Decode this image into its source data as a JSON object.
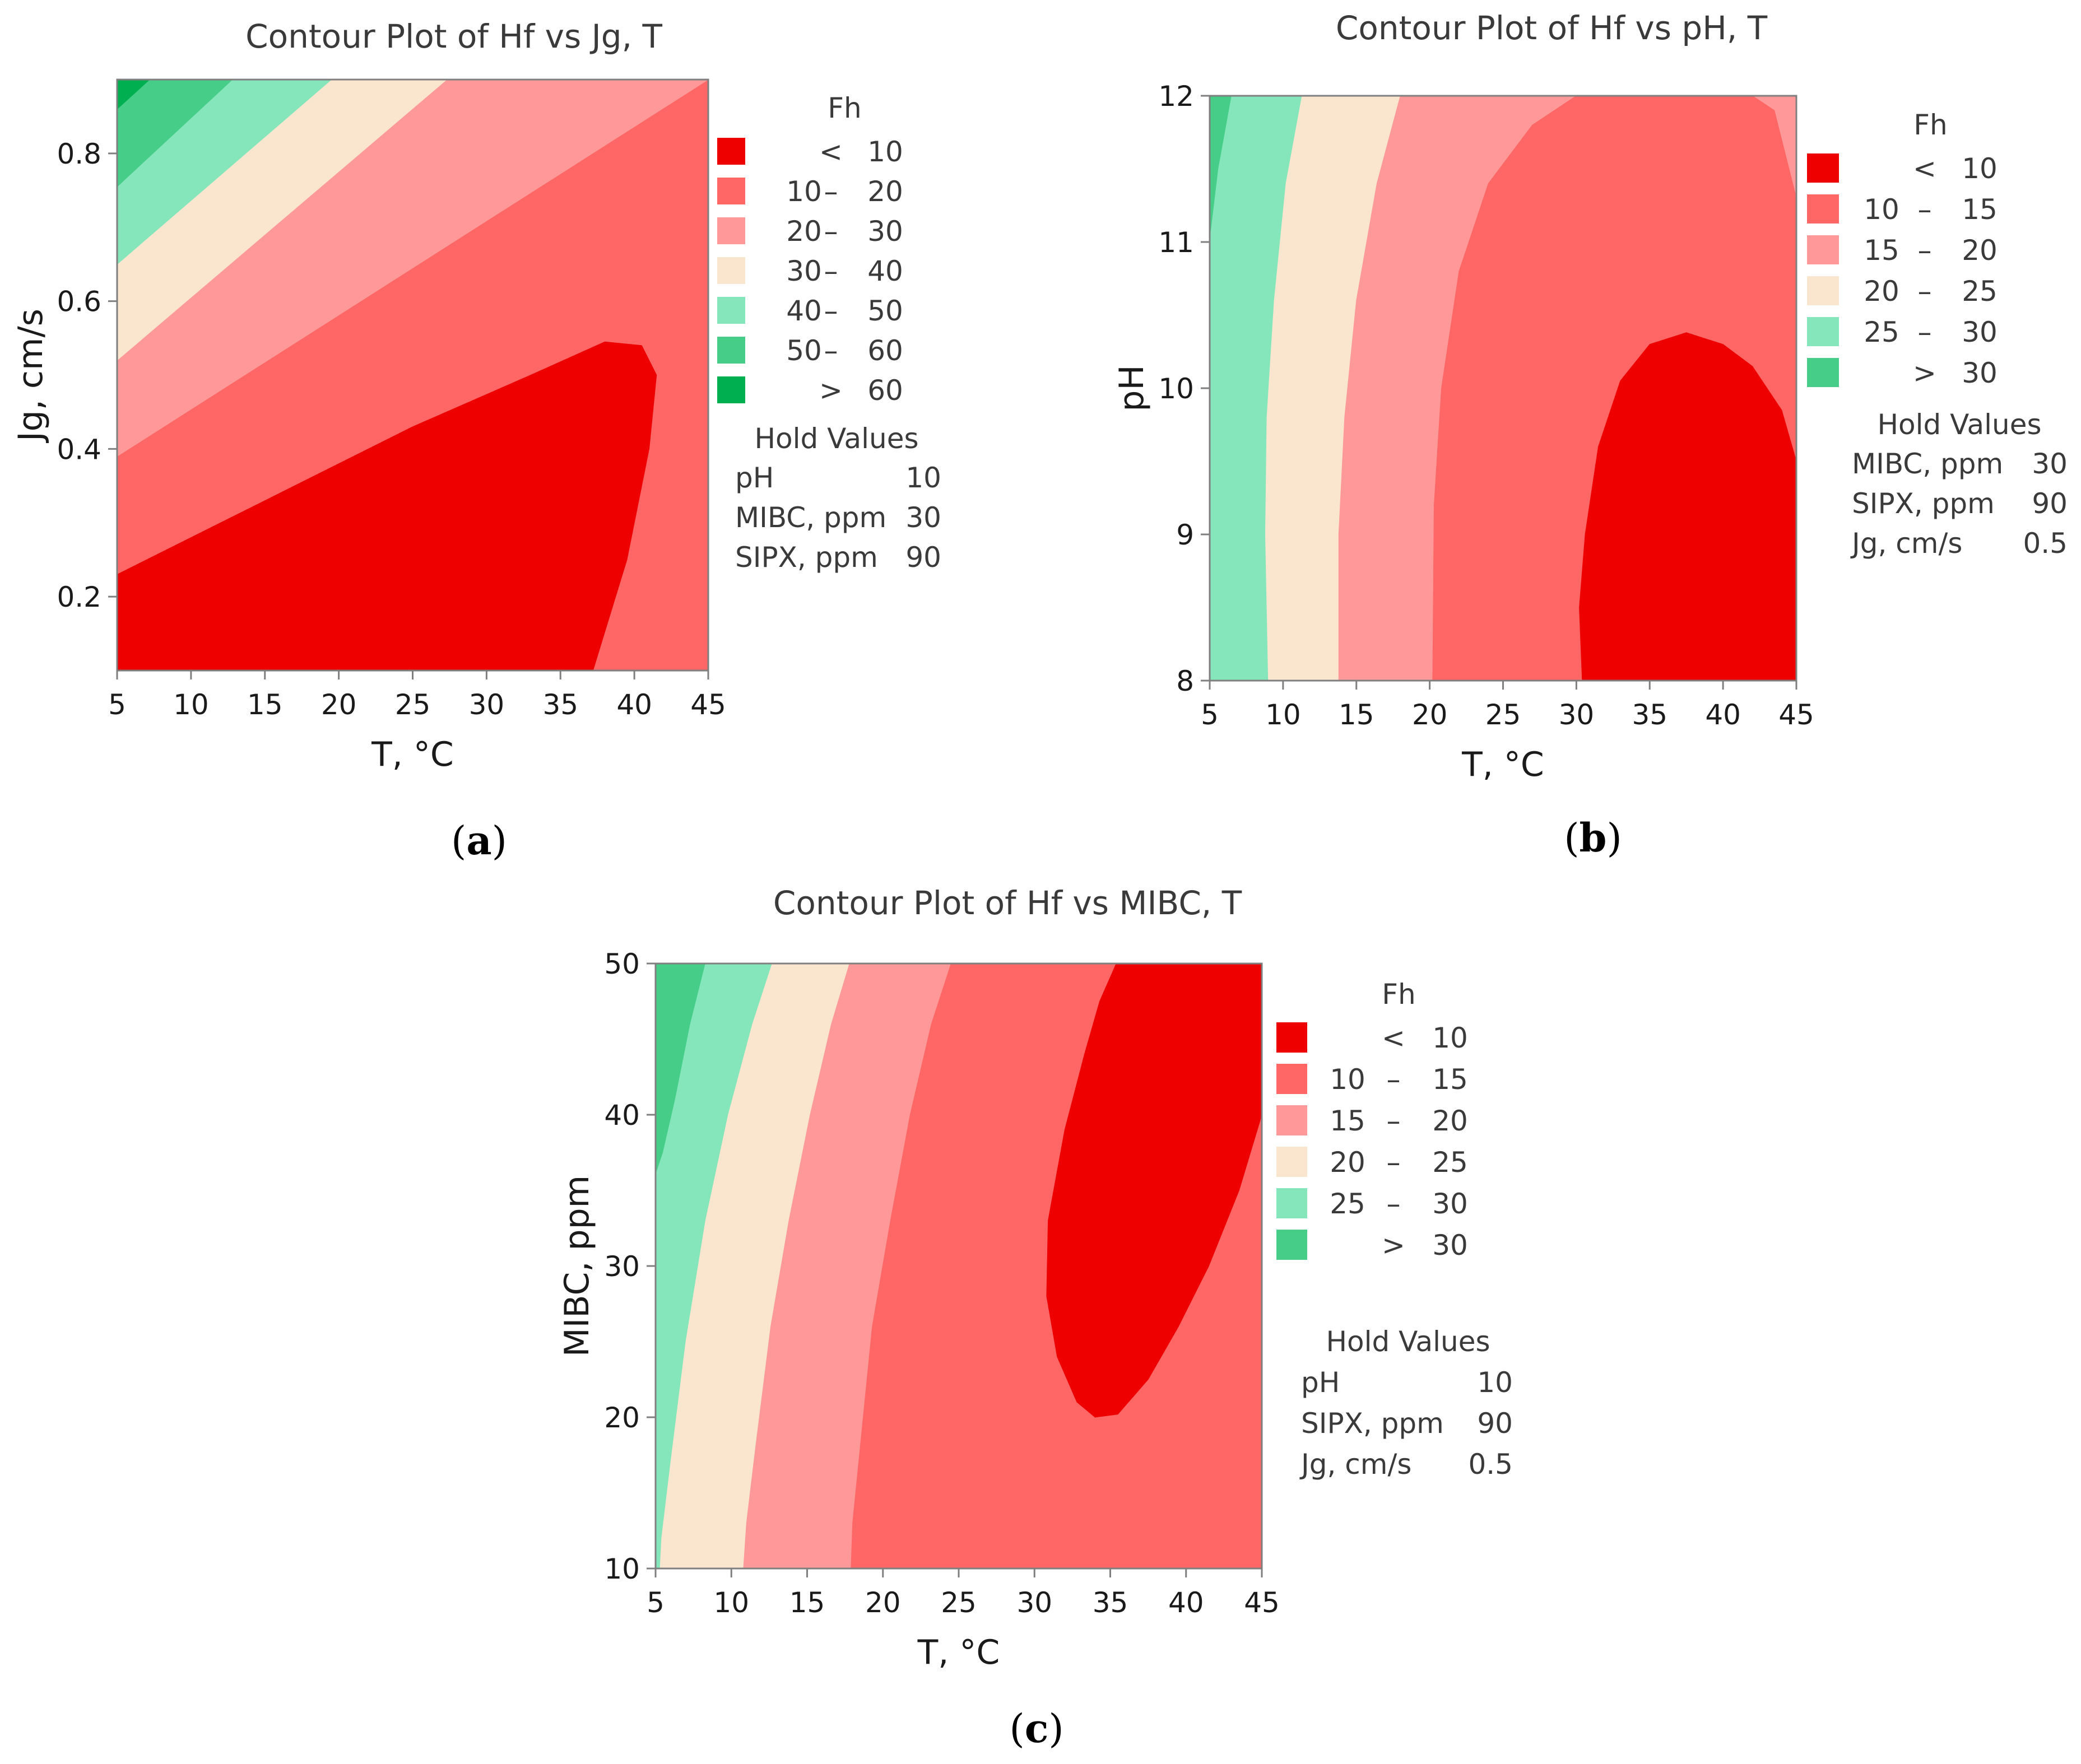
{
  "figure": {
    "captions": [
      "(a)",
      "(b)",
      "(c)"
    ]
  },
  "colors": {
    "red": "#ee0000",
    "red_light": "#ff6666",
    "pink": "#ff9898",
    "beige": "#fae6cf",
    "green_light": "#85e6bb",
    "green_mid": "#46cd88",
    "green_dark": "#00b050",
    "axis": "#7f7f7f"
  },
  "chart_data": [
    {
      "type": "contour",
      "title": "Contour Plot of Hf vs Jg, T",
      "xlabel": "T, °C",
      "ylabel": "Jg, cm/s",
      "xlim": [
        5,
        45
      ],
      "ylim": [
        0.1,
        0.9
      ],
      "xticks": [
        "5",
        "10",
        "15",
        "20",
        "25",
        "30",
        "35",
        "40",
        "45"
      ],
      "yticks": [
        "0.2",
        "0.4",
        "0.6",
        "0.8"
      ],
      "ytick_values": [
        0.2,
        0.4,
        0.6,
        0.8
      ],
      "legend": {
        "title": "Fh",
        "levels": [
          {
            "low": "",
            "sep": "<",
            "high": "10",
            "color": "#ee0000"
          },
          {
            "low": "10",
            "sep": "–",
            "high": "20",
            "color": "#ff6666"
          },
          {
            "low": "20",
            "sep": "–",
            "high": "30",
            "color": "#ff9898"
          },
          {
            "low": "30",
            "sep": "–",
            "high": "40",
            "color": "#fae6cf"
          },
          {
            "low": "40",
            "sep": "–",
            "high": "50",
            "color": "#85e6bb"
          },
          {
            "low": "50",
            "sep": "–",
            "high": "60",
            "color": "#46cd88"
          },
          {
            "low": "",
            "sep": ">",
            "high": "60",
            "color": "#00b050"
          }
        ]
      },
      "hold_values": {
        "title": "Hold Values",
        "rows": [
          {
            "name": "pH",
            "value": "10"
          },
          {
            "name": "MIBC, ppm",
            "value": "30"
          },
          {
            "name": "SIPX, ppm",
            "value": "90"
          }
        ]
      },
      "regions": [
        {
          "level": "10–20",
          "color": "#ff6666",
          "points": [
            [
              5,
              0.1
            ],
            [
              45,
              0.1
            ],
            [
              45,
              0.9
            ],
            [
              5,
              0.9
            ]
          ]
        },
        {
          "level": "20–30",
          "color": "#ff9898",
          "points": [
            [
              5,
              0.39
            ],
            [
              45,
              0.9
            ],
            [
              5,
              0.9
            ]
          ]
        },
        {
          "level": "30–40",
          "color": "#fae6cf",
          "points": [
            [
              5,
              0.52
            ],
            [
              27.3,
              0.9
            ],
            [
              5,
              0.9
            ]
          ]
        },
        {
          "level": "40–50",
          "color": "#85e6bb",
          "points": [
            [
              5,
              0.65
            ],
            [
              19.5,
              0.9
            ],
            [
              5,
              0.9
            ]
          ]
        },
        {
          "level": "50–60",
          "color": "#46cd88",
          "points": [
            [
              5,
              0.755
            ],
            [
              12.8,
              0.9
            ],
            [
              5,
              0.9
            ]
          ]
        },
        {
          "level": ">60",
          "color": "#00b050",
          "points": [
            [
              5,
              0.86
            ],
            [
              7.2,
              0.9
            ],
            [
              5,
              0.9
            ]
          ]
        },
        {
          "level": "<10",
          "color": "#ee0000",
          "points": [
            [
              5,
              0.1
            ],
            [
              5,
              0.23
            ],
            [
              15,
              0.33
            ],
            [
              25,
              0.43
            ],
            [
              33,
              0.5
            ],
            [
              38,
              0.545
            ],
            [
              40.5,
              0.54
            ],
            [
              41.5,
              0.5
            ],
            [
              41,
              0.4
            ],
            [
              39.5,
              0.25
            ],
            [
              37.2,
              0.1
            ]
          ]
        }
      ]
    },
    {
      "type": "contour",
      "title": "Contour Plot of Hf vs pH, T",
      "xlabel": "T, °C",
      "ylabel": "pH",
      "xlim": [
        5,
        45
      ],
      "ylim": [
        8,
        12
      ],
      "xticks": [
        "5",
        "10",
        "15",
        "20",
        "25",
        "30",
        "35",
        "40",
        "45"
      ],
      "yticks": [
        "8",
        "9",
        "10",
        "11",
        "12"
      ],
      "ytick_values": [
        8,
        9,
        10,
        11,
        12
      ],
      "legend": {
        "title": "Fh",
        "levels": [
          {
            "low": "",
            "sep": "<",
            "high": "10",
            "color": "#ee0000"
          },
          {
            "low": "10",
            "sep": "–",
            "high": "15",
            "color": "#ff6666"
          },
          {
            "low": "15",
            "sep": "–",
            "high": "20",
            "color": "#ff9898"
          },
          {
            "low": "20",
            "sep": "–",
            "high": "25",
            "color": "#fae6cf"
          },
          {
            "low": "25",
            "sep": "–",
            "high": "30",
            "color": "#85e6bb"
          },
          {
            "low": "",
            "sep": ">",
            "high": "30",
            "color": "#46cd88"
          }
        ]
      },
      "hold_values": {
        "title": "Hold Values",
        "rows": [
          {
            "name": "MIBC, ppm",
            "value": "30"
          },
          {
            "name": "SIPX, ppm",
            "value": "90"
          },
          {
            "name": "Jg, cm/s",
            "value": "0.5"
          }
        ]
      },
      "regions": [
        {
          "level": ">30",
          "color": "#46cd88",
          "points": [
            [
              5,
              8
            ],
            [
              45,
              8
            ],
            [
              45,
              12
            ],
            [
              5,
              12
            ]
          ]
        },
        {
          "level": "25–30",
          "color": "#85e6bb",
          "points": [
            [
              5,
              8
            ],
            [
              45,
              8
            ],
            [
              45,
              12
            ],
            [
              6.5,
              12
            ],
            [
              5.6,
              11.5
            ],
            [
              5,
              11.0
            ]
          ]
        },
        {
          "level": "20–25",
          "color": "#fae6cf",
          "points": [
            [
              9,
              8
            ],
            [
              45,
              8
            ],
            [
              45,
              12
            ],
            [
              11.3,
              12
            ],
            [
              10.2,
              11.4
            ],
            [
              9.4,
              10.6
            ],
            [
              8.9,
              9.8
            ],
            [
              8.8,
              9
            ],
            [
              9,
              8
            ]
          ]
        },
        {
          "level": "15–20",
          "color": "#ff9898",
          "points": [
            [
              13.8,
              8
            ],
            [
              45,
              8
            ],
            [
              45,
              12
            ],
            [
              18,
              12
            ],
            [
              16.4,
              11.4
            ],
            [
              15,
              10.6
            ],
            [
              14.2,
              9.8
            ],
            [
              13.8,
              9
            ]
          ]
        },
        {
          "level": "10–15",
          "color": "#ff6666",
          "points": [
            [
              20.2,
              8
            ],
            [
              45,
              8
            ],
            [
              45,
              11.3
            ],
            [
              43.5,
              11.9
            ],
            [
              42,
              12
            ],
            [
              30,
              12
            ],
            [
              27,
              11.8
            ],
            [
              24,
              11.4
            ],
            [
              22,
              10.8
            ],
            [
              20.8,
              10
            ],
            [
              20.3,
              9.2
            ]
          ]
        },
        {
          "level": "<10",
          "color": "#ee0000",
          "points": [
            [
              30.4,
              8
            ],
            [
              45,
              8
            ],
            [
              45,
              9.5
            ],
            [
              44,
              9.85
            ],
            [
              42,
              10.15
            ],
            [
              40,
              10.3
            ],
            [
              37.5,
              10.38
            ],
            [
              35,
              10.3
            ],
            [
              33,
              10.05
            ],
            [
              31.5,
              9.6
            ],
            [
              30.6,
              9
            ],
            [
              30.2,
              8.5
            ]
          ]
        }
      ]
    },
    {
      "type": "contour",
      "title": "Contour Plot of Hf vs MIBC, T",
      "xlabel": "T, °C",
      "ylabel": "MIBC, ppm",
      "xlim": [
        5,
        45
      ],
      "ylim": [
        10,
        50
      ],
      "xticks": [
        "5",
        "10",
        "15",
        "20",
        "25",
        "30",
        "35",
        "40",
        "45"
      ],
      "yticks": [
        "10",
        "20",
        "30",
        "40",
        "50"
      ],
      "ytick_values": [
        10,
        20,
        30,
        40,
        50
      ],
      "legend": {
        "title": "Fh",
        "levels": [
          {
            "low": "",
            "sep": "<",
            "high": "10",
            "color": "#ee0000"
          },
          {
            "low": "10",
            "sep": "–",
            "high": "15",
            "color": "#ff6666"
          },
          {
            "low": "15",
            "sep": "–",
            "high": "20",
            "color": "#ff9898"
          },
          {
            "low": "20",
            "sep": "–",
            "high": "25",
            "color": "#fae6cf"
          },
          {
            "low": "25",
            "sep": "–",
            "high": "30",
            "color": "#85e6bb"
          },
          {
            "low": "",
            "sep": ">",
            "high": "30",
            "color": "#46cd88"
          }
        ]
      },
      "hold_values": {
        "title": "Hold Values",
        "rows": [
          {
            "name": "pH",
            "value": "10"
          },
          {
            "name": "SIPX, ppm",
            "value": "90"
          },
          {
            "name": "Jg, cm/s",
            "value": "0.5"
          }
        ]
      },
      "regions": [
        {
          "level": ">30",
          "color": "#46cd88",
          "points": [
            [
              5,
              10
            ],
            [
              45,
              10
            ],
            [
              45,
              50
            ],
            [
              5,
              50
            ]
          ]
        },
        {
          "level": "25–30",
          "color": "#85e6bb",
          "points": [
            [
              5,
              10
            ],
            [
              45,
              10
            ],
            [
              45,
              50
            ],
            [
              8.3,
              50
            ],
            [
              7.3,
              46
            ],
            [
              6.3,
              41
            ],
            [
              5.5,
              37.5
            ],
            [
              5,
              36
            ]
          ]
        },
        {
          "level": "20–25",
          "color": "#fae6cf",
          "points": [
            [
              5.3,
              10
            ],
            [
              45,
              10
            ],
            [
              45,
              50
            ],
            [
              12.7,
              50
            ],
            [
              11.4,
              46
            ],
            [
              9.8,
              40
            ],
            [
              8.3,
              33
            ],
            [
              7,
              25
            ],
            [
              6,
              17
            ],
            [
              5.4,
              12
            ]
          ]
        },
        {
          "level": "15–20",
          "color": "#ff9898",
          "points": [
            [
              10.8,
              10
            ],
            [
              45,
              10
            ],
            [
              45,
              50
            ],
            [
              17.8,
              50
            ],
            [
              16.6,
              46
            ],
            [
              15.2,
              40
            ],
            [
              13.8,
              33
            ],
            [
              12.6,
              26
            ],
            [
              11.6,
              18
            ],
            [
              11,
              13
            ]
          ]
        },
        {
          "level": "10–15",
          "color": "#ff6666",
          "points": [
            [
              17.9,
              10
            ],
            [
              45,
              10
            ],
            [
              45,
              50
            ],
            [
              24.5,
              50
            ],
            [
              23.2,
              46
            ],
            [
              21.8,
              40
            ],
            [
              20.5,
              33
            ],
            [
              19.3,
              26
            ],
            [
              18.5,
              18
            ],
            [
              18,
              13
            ]
          ]
        },
        {
          "level": "<10",
          "color": "#ee0000",
          "points": [
            [
              35.4,
              50
            ],
            [
              45,
              50
            ],
            [
              45,
              40
            ],
            [
              43.5,
              35
            ],
            [
              41.5,
              30
            ],
            [
              39.5,
              26
            ],
            [
              37.5,
              22.5
            ],
            [
              35.5,
              20.2
            ],
            [
              34,
              20
            ],
            [
              32.8,
              21
            ],
            [
              31.5,
              24
            ],
            [
              30.8,
              28
            ],
            [
              30.9,
              33
            ],
            [
              32,
              39
            ],
            [
              33.3,
              44
            ],
            [
              34.3,
              47.5
            ]
          ]
        }
      ]
    }
  ]
}
